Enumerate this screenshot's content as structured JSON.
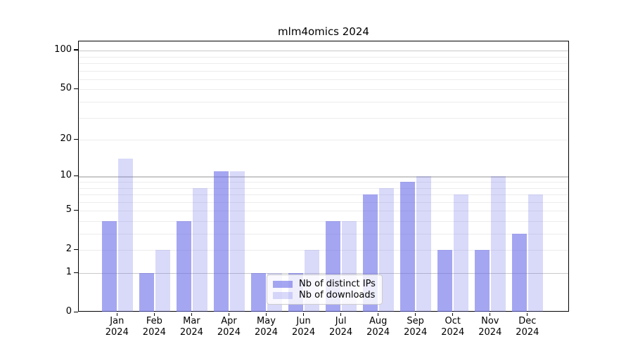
{
  "title": "mlm4omics 2024",
  "colors": {
    "bar_distinct_ips": "rgba(105,107,232,0.60)",
    "bar_downloads": "rgba(105,107,232,0.25)",
    "grid_major": "#c9c9c9",
    "grid_minor": "#ececec",
    "axis_spine": "#000000",
    "legend_border": "#cccccc",
    "legend_background": "rgba(255,255,255,0.8)"
  },
  "legend": {
    "items": [
      {
        "label": "Nb of distinct IPs",
        "series": "ips"
      },
      {
        "label": "Nb of downloads",
        "series": "downloads"
      }
    ]
  },
  "chart_data": {
    "type": "bar",
    "title": "mlm4omics 2024",
    "categories": [
      "Jan",
      "Feb",
      "Mar",
      "Apr",
      "May",
      "Jun",
      "Jul",
      "Aug",
      "Sep",
      "Oct",
      "Nov",
      "Dec"
    ],
    "category_year": "2024",
    "series": [
      {
        "name": "Nb of distinct IPs",
        "values": [
          4,
          1,
          4,
          11,
          1,
          1,
          4,
          7,
          9,
          2,
          2,
          3
        ]
      },
      {
        "name": "Nb of downloads",
        "values": [
          14,
          2,
          8,
          11,
          1,
          2,
          4,
          8,
          10,
          7,
          10,
          7
        ]
      }
    ],
    "xlabel": "",
    "ylabel": "",
    "y_scale": "log1p",
    "y_ticks": [
      0,
      1,
      2,
      5,
      10,
      20,
      50,
      100
    ],
    "y_major_gridlines": [
      1,
      10,
      100
    ],
    "y_minor_gridlines": [
      2,
      3,
      4,
      5,
      6,
      7,
      8,
      9,
      20,
      30,
      40,
      50,
      60,
      70,
      80,
      90
    ],
    "ylim": [
      0,
      118
    ],
    "grid": "on",
    "legend_position": "lower center"
  }
}
